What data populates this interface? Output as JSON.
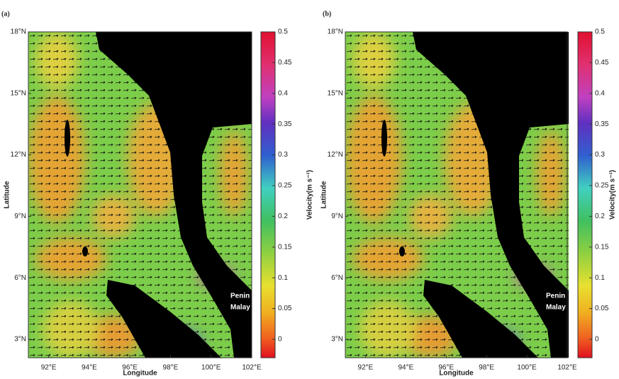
{
  "chart_data": [
    {
      "type": "map",
      "panel_label": "(a)",
      "xlabel": "Longitude",
      "ylabel": "Latitude",
      "xlim": [
        91,
        102
      ],
      "ylim": [
        2.1,
        18
      ],
      "xticks": [
        {
          "value": 92,
          "label": "92°E"
        },
        {
          "value": 94,
          "label": "94°E"
        },
        {
          "value": 96,
          "label": "96°E"
        },
        {
          "value": 98,
          "label": "98°E"
        },
        {
          "value": 100,
          "label": "100°E"
        },
        {
          "value": 102,
          "label": "102°E"
        }
      ],
      "yticks": [
        {
          "value": 3,
          "label": "3°N"
        },
        {
          "value": 6,
          "label": "6°N"
        },
        {
          "value": 9,
          "label": "9°N"
        },
        {
          "value": 12,
          "label": "12°N"
        },
        {
          "value": 15,
          "label": "15°N"
        },
        {
          "value": 18,
          "label": "18°N"
        }
      ],
      "colorbar": {
        "label": "Velocity(m s⁻¹)",
        "lim": [
          -0.03,
          0.5
        ],
        "ticks": [
          0,
          0.05,
          0.1,
          0.15,
          0.2,
          0.25,
          0.3,
          0.35,
          0.4,
          0.45,
          0.5
        ]
      },
      "annotations": [
        "Penin",
        "Malay"
      ]
    },
    {
      "type": "map",
      "panel_label": "(b)",
      "xlabel": "Longitude",
      "ylabel": "Latitude",
      "xlim": [
        91,
        102
      ],
      "ylim": [
        2.1,
        18
      ],
      "xticks": [
        {
          "value": 92,
          "label": "92°E"
        },
        {
          "value": 94,
          "label": "94°E"
        },
        {
          "value": 96,
          "label": "96°E"
        },
        {
          "value": 98,
          "label": "98°E"
        },
        {
          "value": 100,
          "label": "100°E"
        },
        {
          "value": 102,
          "label": "102°E"
        }
      ],
      "yticks": [
        {
          "value": 3,
          "label": "3°N"
        },
        {
          "value": 6,
          "label": "6°N"
        },
        {
          "value": 9,
          "label": "9°N"
        },
        {
          "value": 12,
          "label": "12°N"
        },
        {
          "value": 15,
          "label": "15°N"
        },
        {
          "value": 18,
          "label": "18°N"
        }
      ],
      "colorbar": {
        "label": "Velocity(m s⁻¹)",
        "lim": [
          -0.03,
          0.5
        ],
        "ticks": [
          0,
          0.05,
          0.1,
          0.15,
          0.2,
          0.25,
          0.3,
          0.35,
          0.4,
          0.45,
          0.5
        ]
      },
      "annotations": [
        "Penin",
        "Malay"
      ]
    }
  ]
}
